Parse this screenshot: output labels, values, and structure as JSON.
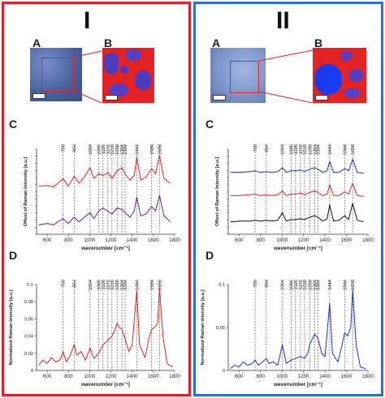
{
  "panel_I": {
    "title": "I",
    "label_A": "A",
    "label_B": "B",
    "label_C": "C",
    "label_D": "D"
  },
  "panel_II": {
    "title": "II",
    "label_A": "A",
    "label_B": "B",
    "label_C": "C",
    "label_D": "D"
  },
  "colors": {
    "red_border": "#e0202a",
    "blue_border": "#2a73c8",
    "red_series": "#e0201c",
    "purple_series": "#6a1a9a",
    "blue_series": "#1f2fd0",
    "black_series": "#111111"
  },
  "chart_data": [
    {
      "panel": "I-C",
      "type": "line",
      "xlabel": "wavenumber [cm⁻¹]",
      "ylabel": "Offset of Raman Intensity [a.u.]",
      "xlim": [
        500,
        1800
      ],
      "xticks": [
        "600",
        "800",
        "1000",
        "1200",
        "1400",
        "1600",
        "1800"
      ],
      "peak_labels": [
        "750",
        "854",
        "1004",
        "1085",
        "1126",
        "1172",
        "1210",
        "1258",
        "1304",
        "1334",
        "1444",
        "1584",
        "1658"
      ],
      "series": [
        {
          "color": "#e0201c",
          "x": [
            520,
            600,
            660,
            700,
            750,
            800,
            854,
            900,
            950,
            1004,
            1040,
            1085,
            1126,
            1172,
            1210,
            1258,
            1304,
            1334,
            1380,
            1420,
            1444,
            1480,
            1530,
            1584,
            1620,
            1658,
            1700,
            1760
          ],
          "y": [
            0.62,
            0.63,
            0.61,
            0.66,
            0.72,
            0.62,
            0.75,
            0.66,
            0.74,
            0.86,
            0.72,
            0.78,
            0.76,
            0.8,
            0.72,
            0.82,
            0.86,
            0.78,
            0.7,
            0.76,
            1.0,
            0.7,
            0.74,
            0.85,
            0.78,
            1.02,
            0.72,
            0.66
          ]
        },
        {
          "color": "#6a1a9a",
          "x": [
            520,
            600,
            660,
            700,
            750,
            800,
            854,
            900,
            950,
            1004,
            1040,
            1085,
            1126,
            1172,
            1210,
            1258,
            1304,
            1334,
            1380,
            1420,
            1444,
            1480,
            1530,
            1584,
            1620,
            1658,
            1700,
            1760
          ],
          "y": [
            0.12,
            0.14,
            0.12,
            0.16,
            0.2,
            0.14,
            0.22,
            0.16,
            0.22,
            0.28,
            0.2,
            0.3,
            0.34,
            0.3,
            0.26,
            0.34,
            0.32,
            0.28,
            0.22,
            0.3,
            0.48,
            0.24,
            0.26,
            0.36,
            0.3,
            0.5,
            0.24,
            0.16
          ]
        }
      ]
    },
    {
      "panel": "I-D",
      "type": "line",
      "xlabel": "wavenumber [cm⁻¹]",
      "ylabel": "Normalized Raman intensity [a.u.]",
      "xlim": [
        500,
        1800
      ],
      "ylim": [
        0,
        0.1
      ],
      "xticks": [
        "600",
        "800",
        "1000",
        "1200",
        "1400",
        "1600",
        "1800"
      ],
      "yticks": [
        "0",
        "0.02",
        "0.04",
        "0.06",
        "0.08",
        "0.1"
      ],
      "peak_labels": [
        "750",
        "854",
        "1004",
        "1085",
        "1126",
        "1172",
        "1210",
        "1258",
        "1304",
        "1334",
        "1444",
        "1584",
        "1658"
      ],
      "series": [
        {
          "color": "#e0201c",
          "x": [
            520,
            560,
            600,
            640,
            680,
            720,
            750,
            780,
            820,
            854,
            880,
            920,
            960,
            1004,
            1040,
            1085,
            1126,
            1172,
            1210,
            1240,
            1258,
            1280,
            1304,
            1334,
            1370,
            1400,
            1444,
            1470,
            1520,
            1560,
            1584,
            1610,
            1640,
            1658,
            1690,
            1730,
            1780
          ],
          "y": [
            0.006,
            0.012,
            0.008,
            0.015,
            0.01,
            0.012,
            0.022,
            0.01,
            0.018,
            0.03,
            0.018,
            0.022,
            0.012,
            0.026,
            0.014,
            0.02,
            0.03,
            0.035,
            0.04,
            0.048,
            0.055,
            0.05,
            0.048,
            0.036,
            0.022,
            0.03,
            0.093,
            0.03,
            0.015,
            0.038,
            0.048,
            0.05,
            0.055,
            0.096,
            0.04,
            0.008,
            0.004
          ]
        }
      ]
    },
    {
      "panel": "II-C",
      "type": "line",
      "xlabel": "wavenumber [cm⁻¹]",
      "ylabel": "Offset of Raman Intensity [a.u.]",
      "xlim": [
        500,
        1800
      ],
      "xticks": [
        "600",
        "800",
        "1000",
        "1200",
        "1400",
        "1600",
        "1800"
      ],
      "peak_labels": [
        "750",
        "854",
        "1004",
        "1085",
        "1126",
        "1172",
        "1210",
        "1258",
        "1304",
        "1334",
        "1444",
        "1584",
        "1658"
      ],
      "series": [
        {
          "color": "#1f2fd0",
          "x": [
            520,
            600,
            700,
            750,
            800,
            854,
            900,
            960,
            1004,
            1040,
            1085,
            1126,
            1172,
            1210,
            1258,
            1304,
            1334,
            1380,
            1420,
            1444,
            1480,
            1530,
            1584,
            1620,
            1658,
            1700,
            1760
          ],
          "y": [
            0.8,
            0.8,
            0.81,
            0.82,
            0.8,
            0.81,
            0.8,
            0.81,
            0.86,
            0.8,
            0.82,
            0.82,
            0.83,
            0.81,
            0.84,
            0.86,
            0.84,
            0.8,
            0.82,
            0.94,
            0.8,
            0.8,
            0.85,
            0.82,
            0.97,
            0.8,
            0.79
          ]
        },
        {
          "color": "#e0201c",
          "x": [
            520,
            600,
            700,
            750,
            800,
            854,
            900,
            960,
            1004,
            1040,
            1085,
            1126,
            1172,
            1210,
            1258,
            1304,
            1334,
            1380,
            1420,
            1444,
            1480,
            1530,
            1584,
            1620,
            1658,
            1700,
            1760
          ],
          "y": [
            0.5,
            0.5,
            0.51,
            0.52,
            0.5,
            0.51,
            0.5,
            0.51,
            0.56,
            0.5,
            0.52,
            0.52,
            0.53,
            0.51,
            0.54,
            0.56,
            0.54,
            0.5,
            0.52,
            0.64,
            0.5,
            0.5,
            0.55,
            0.52,
            0.66,
            0.5,
            0.49
          ]
        },
        {
          "color": "#111111",
          "x": [
            520,
            600,
            700,
            750,
            800,
            854,
            900,
            960,
            1004,
            1040,
            1085,
            1126,
            1172,
            1210,
            1258,
            1304,
            1334,
            1380,
            1420,
            1444,
            1480,
            1530,
            1584,
            1620,
            1658,
            1700,
            1760
          ],
          "y": [
            0.16,
            0.17,
            0.17,
            0.18,
            0.17,
            0.18,
            0.17,
            0.18,
            0.28,
            0.17,
            0.19,
            0.19,
            0.2,
            0.19,
            0.22,
            0.24,
            0.22,
            0.17,
            0.2,
            0.38,
            0.17,
            0.18,
            0.24,
            0.19,
            0.4,
            0.18,
            0.16
          ]
        }
      ]
    },
    {
      "panel": "II-D",
      "type": "line",
      "xlabel": "wavenumber [cm⁻¹]",
      "ylabel": "Normalized Raman intensity [a.u.]",
      "xlim": [
        500,
        1800
      ],
      "ylim": [
        0,
        0.1
      ],
      "xticks": [
        "600",
        "800",
        "1000",
        "1200",
        "1400",
        "1600",
        "1800"
      ],
      "yticks": [
        "0",
        "0.05",
        "0.1"
      ],
      "peak_labels": [
        "750",
        "854",
        "1004",
        "1085",
        "1126",
        "1172",
        "1210",
        "1258",
        "1304",
        "1334",
        "1444",
        "1584",
        "1658"
      ],
      "series": [
        {
          "color": "#1f2fd0",
          "x": [
            520,
            560,
            600,
            640,
            680,
            720,
            750,
            780,
            820,
            854,
            880,
            920,
            960,
            1004,
            1040,
            1085,
            1126,
            1172,
            1210,
            1240,
            1258,
            1280,
            1304,
            1334,
            1370,
            1400,
            1444,
            1470,
            1520,
            1560,
            1584,
            1610,
            1640,
            1658,
            1690,
            1730,
            1780
          ],
          "y": [
            0.002,
            0.006,
            0.004,
            0.01,
            0.006,
            0.008,
            0.012,
            0.006,
            0.01,
            0.014,
            0.008,
            0.01,
            0.006,
            0.03,
            0.008,
            0.012,
            0.014,
            0.016,
            0.014,
            0.02,
            0.03,
            0.036,
            0.042,
            0.038,
            0.02,
            0.016,
            0.078,
            0.02,
            0.01,
            0.03,
            0.044,
            0.04,
            0.05,
            0.094,
            0.03,
            0.004,
            0.002
          ]
        }
      ]
    }
  ]
}
